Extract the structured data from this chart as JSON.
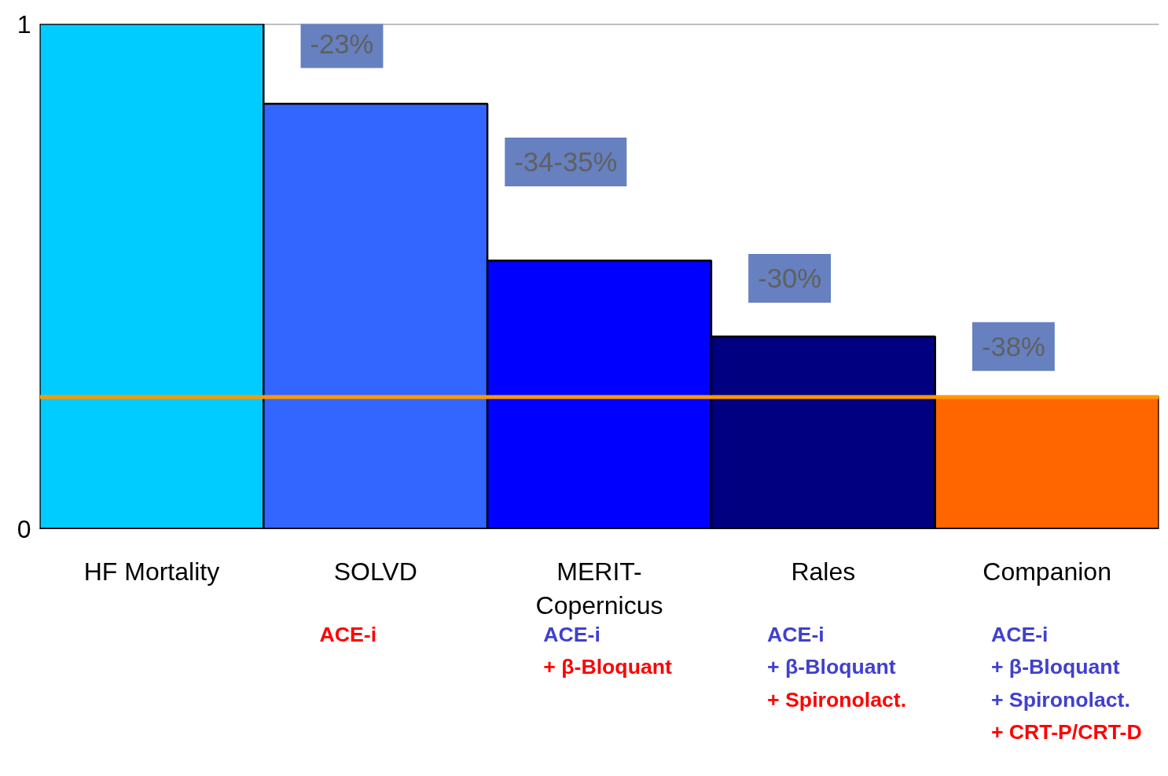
{
  "chart_data": {
    "type": "bar",
    "categories": [
      "HF Mortality",
      "SOLVD",
      "MERIT-Copernicus",
      "Rales",
      "Companion"
    ],
    "values": [
      1,
      0.842,
      0.531,
      0.381,
      0.261
    ],
    "colors": [
      "#00ccff",
      "#3366ff",
      "#0000ff",
      "#000080",
      "#ff6600"
    ],
    "ylim": [
      0,
      1
    ],
    "yticks": [
      0,
      1
    ],
    "ref_lines": [
      {
        "axis": "y",
        "value": 0.261,
        "color": "#ff9900"
      },
      {
        "axis": "y",
        "value": 1,
        "color": "#808080"
      }
    ],
    "annotations": [
      "-23%",
      "-34-35%",
      "-30%",
      "-38%",
      "ACE-i",
      "ACE-i\n+ β-Bloquant",
      "ACE-i\n+ β-Bloquant\n+ Spironolact.",
      "ACE-i\n+ β-Bloquant\n+ Spironolact.\n+ CRT-P/CRT-D"
    ]
  }
}
